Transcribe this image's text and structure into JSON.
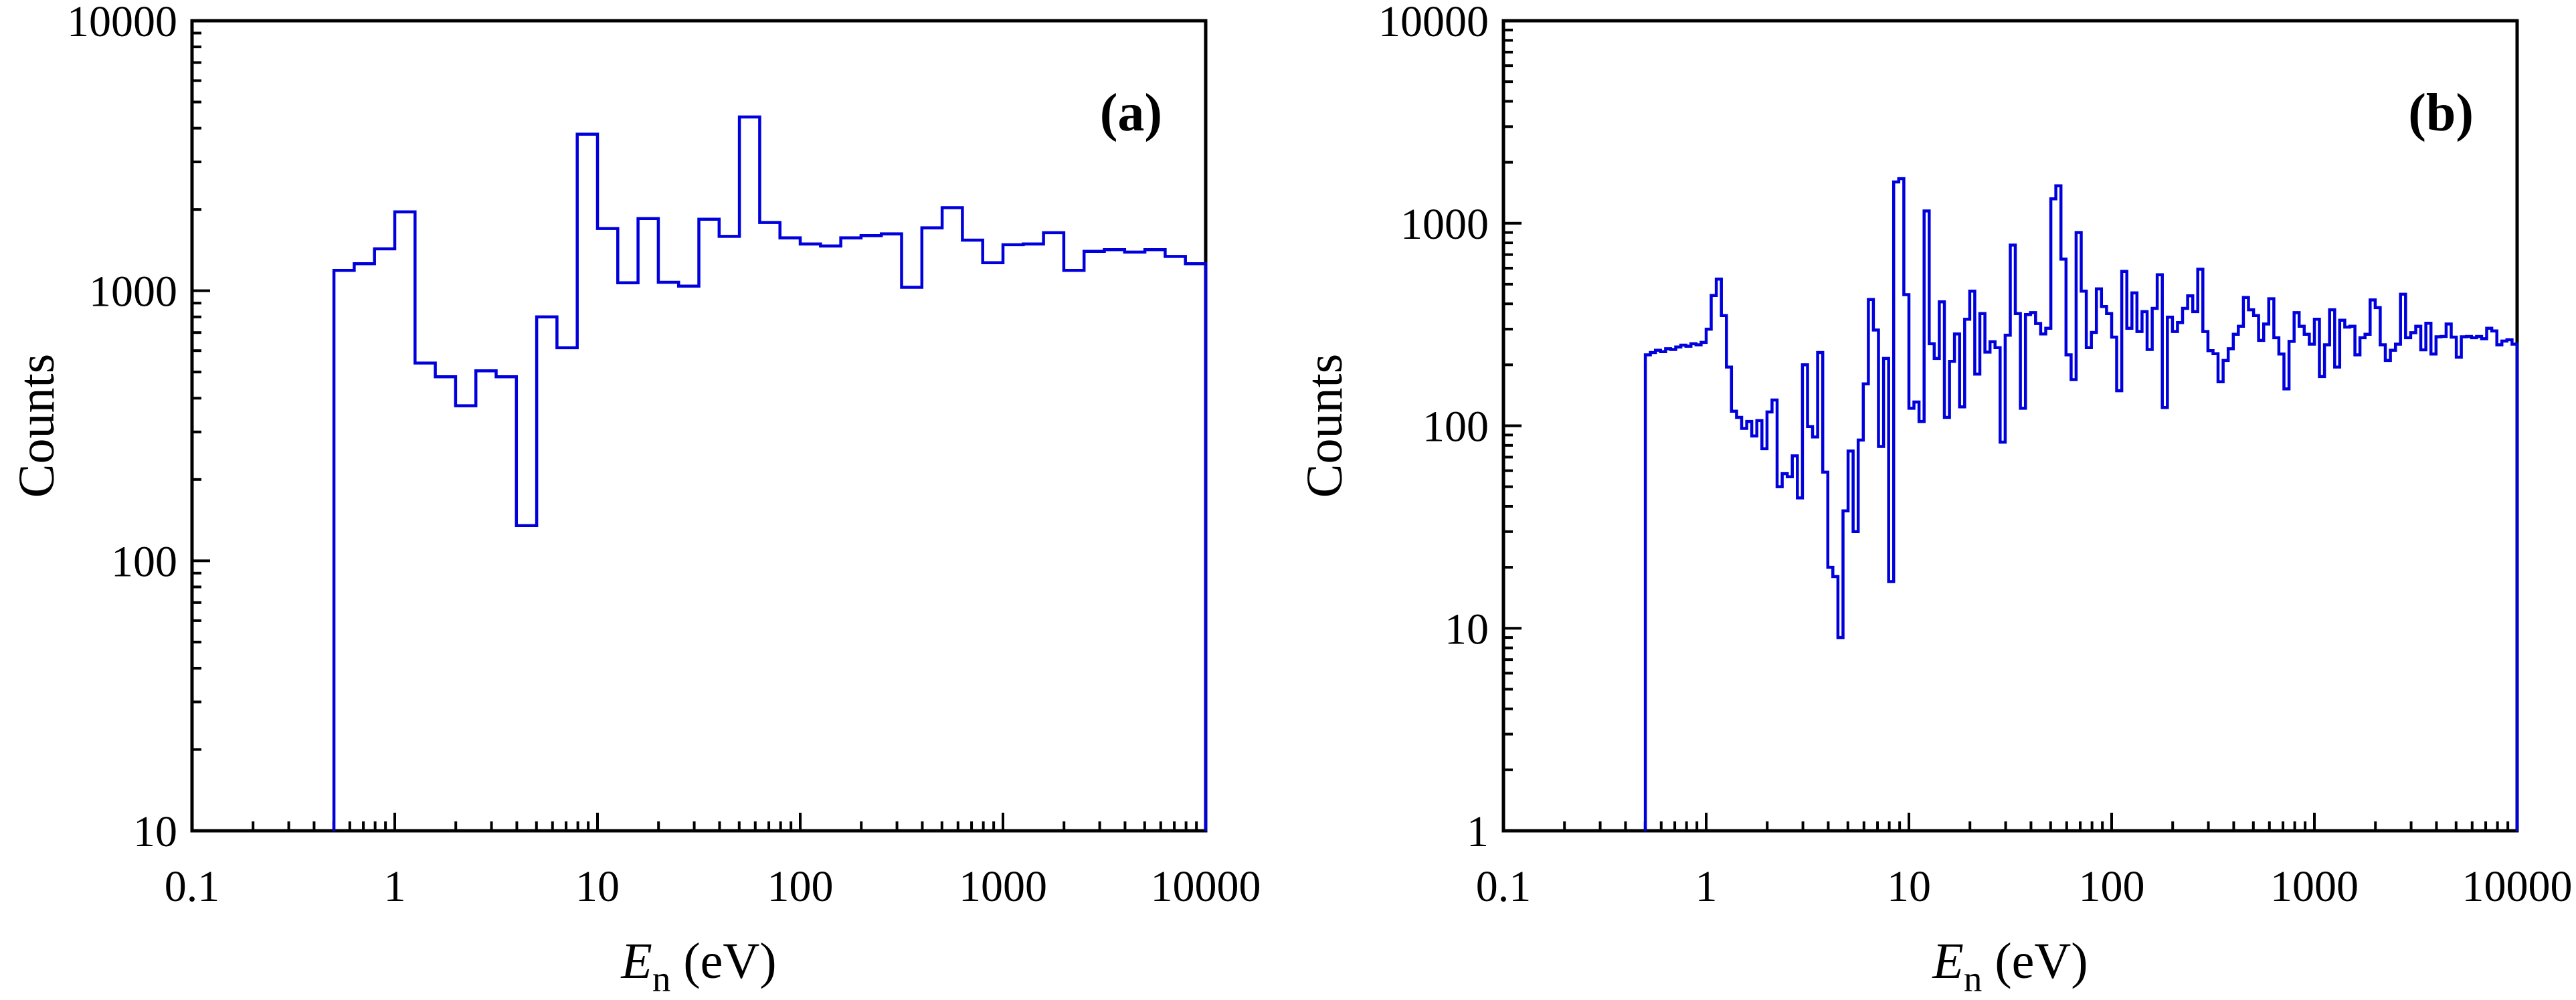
{
  "figure": {
    "background_color": "#ffffff",
    "frame_color": "#000000",
    "line_color": "#0000DD",
    "ylabel": "Counts",
    "xlabel_main": "E",
    "xlabel_sub": "n",
    "xlabel_rest": " (eV)"
  },
  "chart_data": [
    {
      "panel": "a",
      "type": "line",
      "subtype": "step-histogram on log-log axes",
      "annotation": "(a)",
      "xlabel": "En (eV)",
      "ylabel": "Counts",
      "xlim": [
        0.1,
        10000
      ],
      "ylim": [
        10,
        10000
      ],
      "x_ticks": [
        0.1,
        1,
        10,
        100,
        1000,
        10000
      ],
      "y_ticks": [
        10,
        100,
        1000,
        10000
      ],
      "grid": false,
      "legend": "none",
      "bins_per_decade": 10,
      "first_bin_edge": 0.501,
      "last_bin_edge": 10000,
      "counts": [
        1190,
        1260,
        1430,
        1960,
        540,
        480,
        375,
        505,
        480,
        135,
        800,
        615,
        3800,
        1700,
        1070,
        1850,
        1075,
        1040,
        1840,
        1590,
        4400,
        1790,
        1570,
        1490,
        1465,
        1570,
        1600,
        1625,
        1030,
        1710,
        2030,
        1540,
        1270,
        1480,
        1490,
        1640,
        1190,
        1400,
        1420,
        1390,
        1420,
        1340,
        1260
      ]
    },
    {
      "panel": "b",
      "type": "line",
      "subtype": "step-histogram on log-log axes",
      "annotation": "(b)",
      "xlabel": "En (eV)",
      "ylabel": "Counts",
      "xlim": [
        0.1,
        10000
      ],
      "ylim": [
        1,
        10000
      ],
      "x_ticks": [
        0.1,
        1,
        10,
        100,
        1000,
        10000
      ],
      "y_ticks": [
        1,
        10,
        100,
        1000,
        10000
      ],
      "grid": false,
      "legend": "none",
      "bins_per_decade": 40,
      "first_bin_edge": 0.501,
      "last_bin_edge": 10000,
      "counts": [
        224,
        230,
        236,
        232,
        240,
        238,
        245,
        250,
        247,
        254,
        251,
        258,
        300,
        440,
        530,
        350,
        195,
        118,
        110,
        97,
        105,
        89,
        106,
        77,
        117,
        134,
        50,
        58,
        56,
        71,
        44,
        200,
        99,
        88,
        230,
        59,
        20,
        18,
        9,
        38,
        75,
        30,
        85,
        161,
        420,
        297,
        79,
        215,
        17,
        1600,
        1660,
        444,
        122,
        131,
        105,
        1150,
        254,
        215,
        409,
        110,
        208,
        284,
        124,
        336,
        462,
        180,
        358,
        231,
        260,
        243,
        83,
        280,
        780,
        358,
        122,
        354,
        362,
        320,
        284,
        303,
        1320,
        1530,
        665,
        224,
        169,
        900,
        462,
        243,
        289,
        474,
        388,
        358,
        274,
        149,
        578,
        303,
        453,
        292,
        366,
        238,
        380,
        557,
        123,
        344,
        292,
        323,
        380,
        438,
        366,
        593,
        292,
        235,
        227,
        165,
        210,
        240,
        283,
        310,
        430,
        374,
        350,
        264,
        318,
        424,
        272,
        226,
        152,
        261,
        362,
        310,
        283,
        253,
        336,
        175,
        251,
        374,
        195,
        332,
        307,
        310,
        224,
        272,
        283,
        418,
        383,
        251,
        210,
        236,
        253,
        446,
        272,
        288,
        310,
        237,
        321,
        226,
        275,
        276,
        318,
        274,
        218,
        275,
        276,
        272,
        276,
        269,
        303,
        294,
        251,
        262,
        266,
        253
      ]
    }
  ]
}
